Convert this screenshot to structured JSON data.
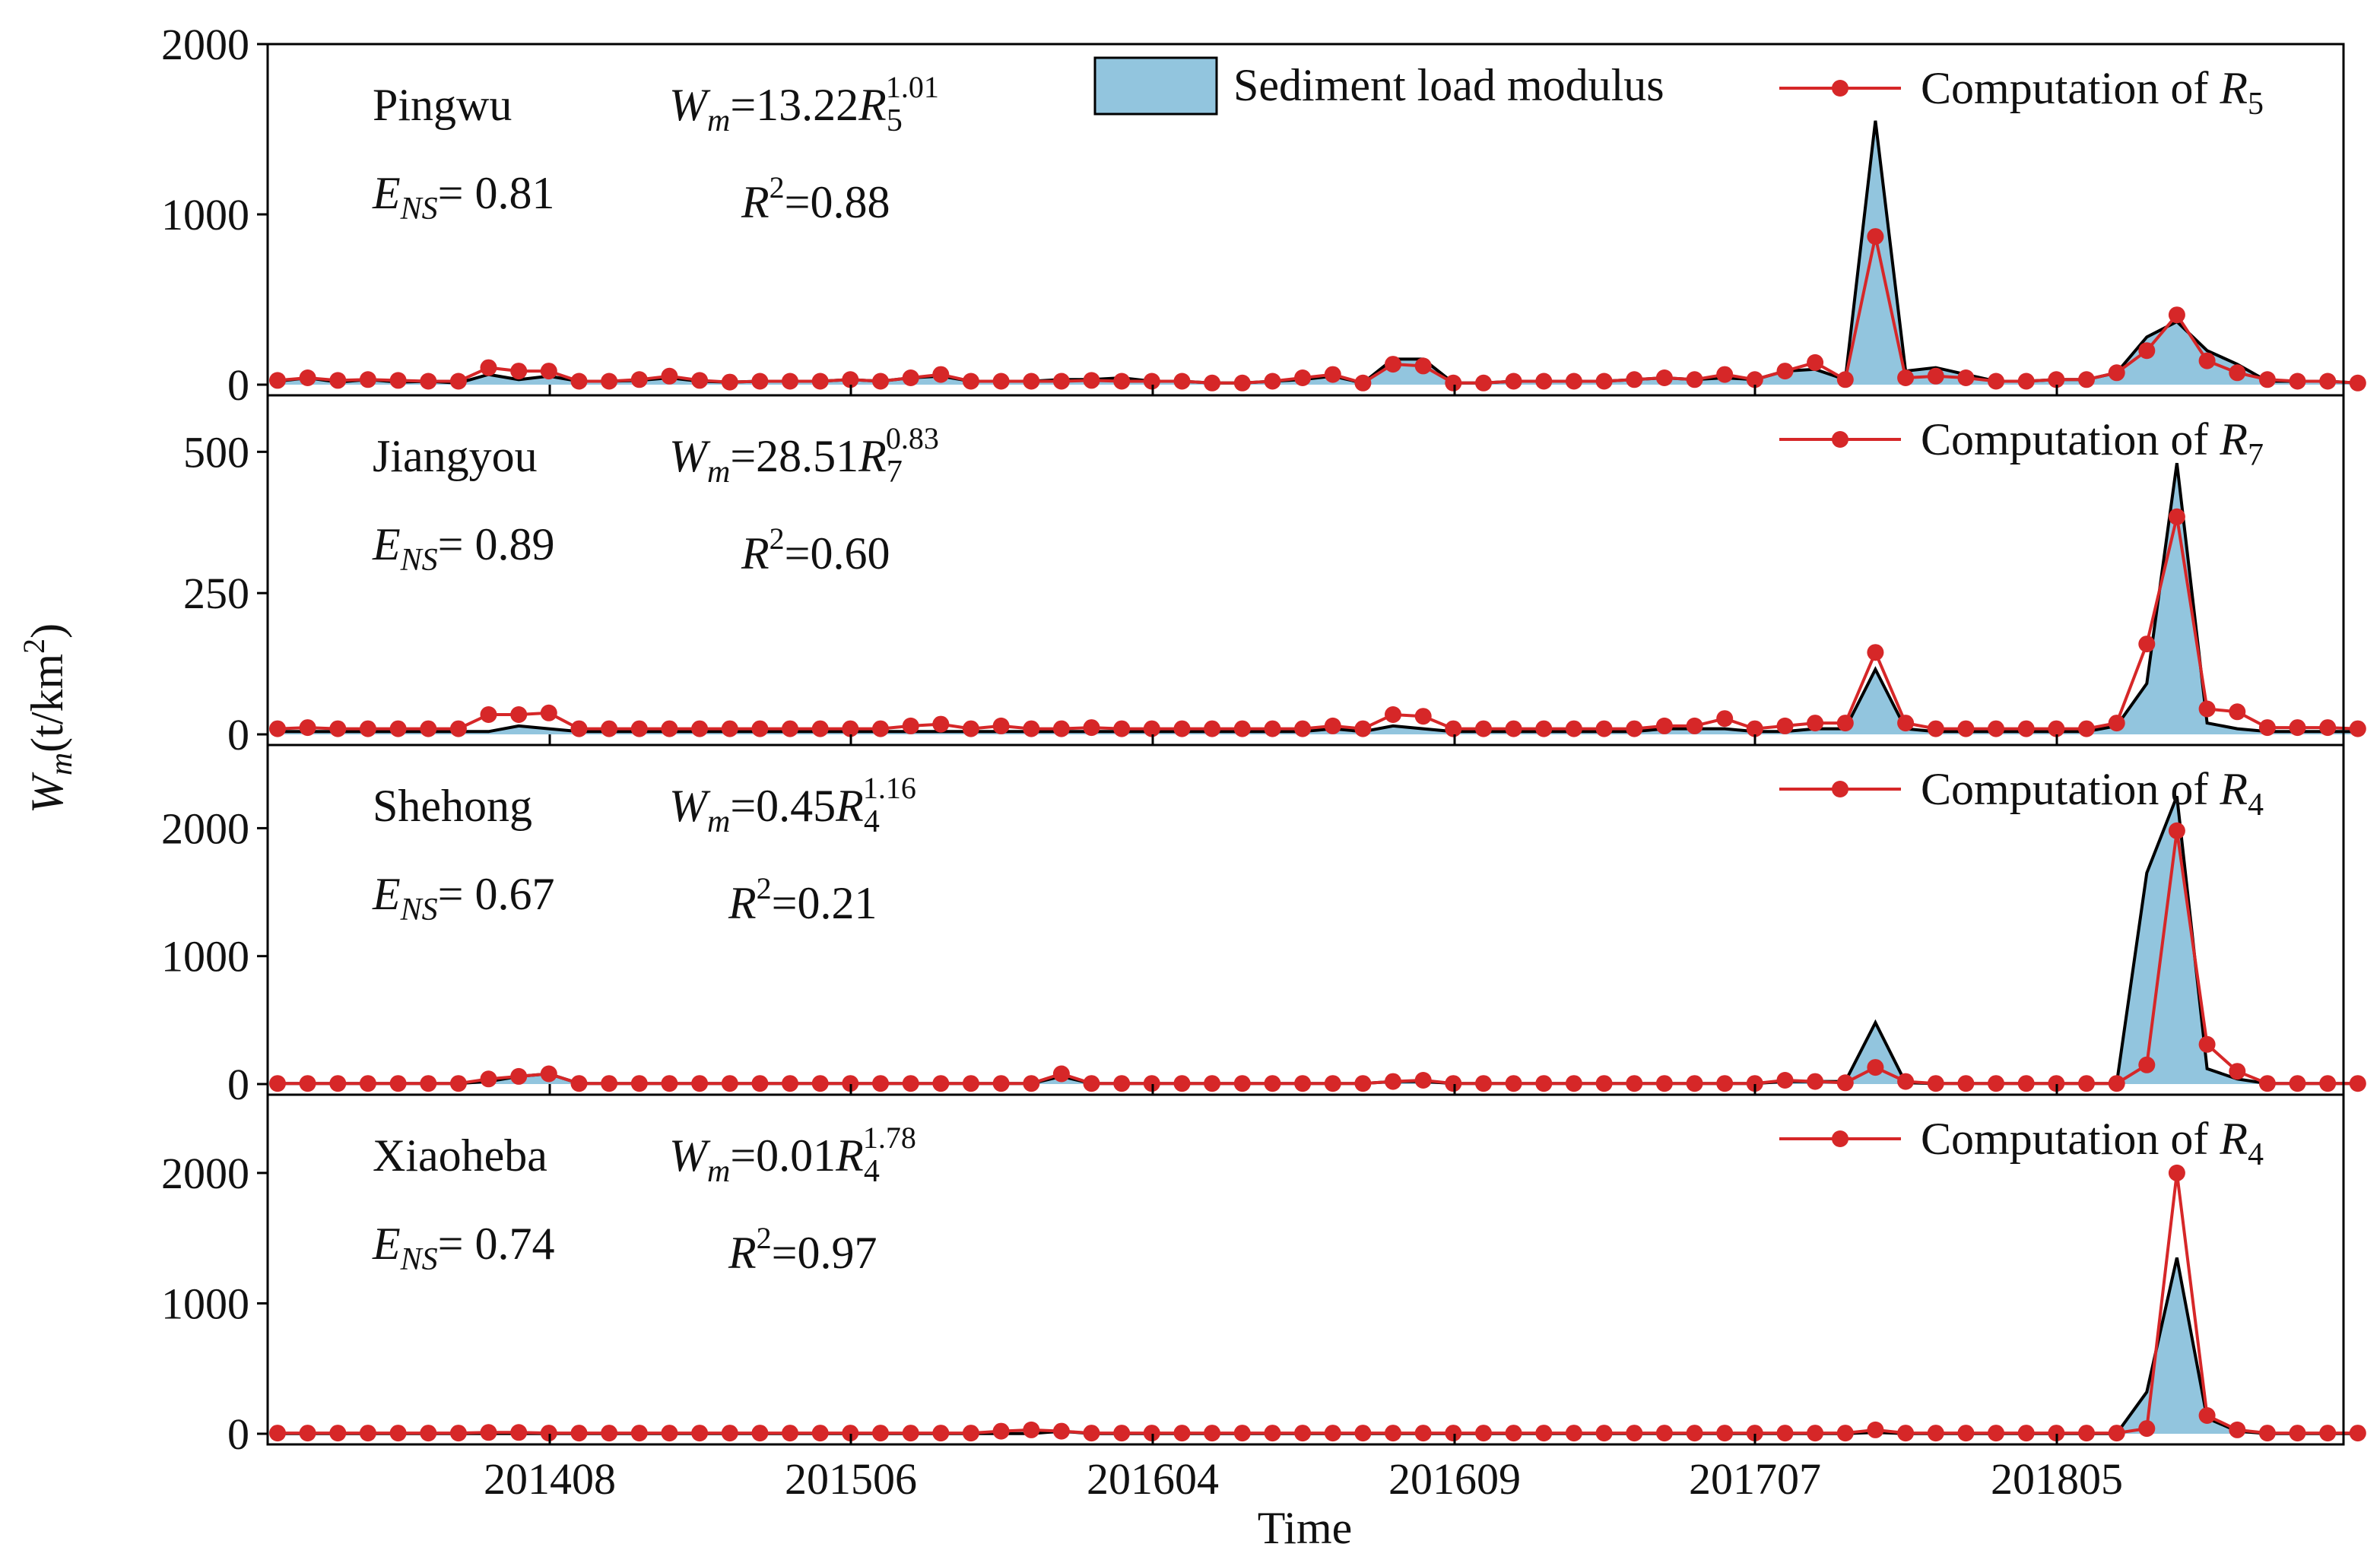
{
  "chart_data": {
    "type": "area",
    "xlabel": "Time",
    "ylabel": "Wm(t/km2)",
    "ylabel_parts": {
      "var": "W",
      "sub": "m",
      "unit": "(t/km",
      "sup": "2",
      "close": ")"
    },
    "x_tick_labels": [
      "201408",
      "201506",
      "201604",
      "201609",
      "201707",
      "201805"
    ],
    "legend": {
      "observed": "Sediment load modulus",
      "computed_prefix": "Computation of",
      "computed_var": "R"
    },
    "panels": [
      {
        "station": "Pingwu",
        "equation": {
          "lhs": "W",
          "lhs_sub": "m",
          "coef": "=13.22",
          "var": "R",
          "var_sub": "5",
          "exp": "1.01"
        },
        "ens": {
          "var": "E",
          "sub": "NS",
          "value": "= 0.81"
        },
        "r2": {
          "var": "R",
          "sup": "2",
          "value": "=0.88"
        },
        "legend_sub": "5",
        "ylim": [
          0,
          2000
        ],
        "yticks": [
          0,
          1000,
          2000
        ],
        "y_tick_labels": [
          "0",
          "1000",
          "2000"
        ],
        "observed": [
          20,
          40,
          15,
          30,
          15,
          20,
          10,
          60,
          30,
          50,
          20,
          20,
          25,
          40,
          20,
          15,
          20,
          20,
          20,
          30,
          20,
          40,
          50,
          20,
          20,
          20,
          30,
          30,
          40,
          20,
          20,
          10,
          10,
          20,
          30,
          50,
          10,
          150,
          150,
          10,
          10,
          20,
          20,
          20,
          20,
          30,
          40,
          30,
          40,
          30,
          80,
          90,
          30,
          1550,
          80,
          100,
          60,
          20,
          20,
          30,
          30,
          70,
          280,
          370,
          200,
          120,
          20,
          20,
          20,
          10
        ],
        "computed": [
          25,
          40,
          25,
          30,
          25,
          20,
          20,
          100,
          80,
          80,
          20,
          20,
          30,
          50,
          25,
          15,
          20,
          20,
          20,
          30,
          20,
          40,
          60,
          20,
          20,
          20,
          20,
          25,
          20,
          20,
          20,
          10,
          10,
          20,
          40,
          60,
          10,
          120,
          110,
          10,
          10,
          20,
          20,
          20,
          20,
          30,
          40,
          30,
          60,
          30,
          80,
          130,
          30,
          870,
          40,
          50,
          40,
          20,
          20,
          30,
          30,
          70,
          200,
          410,
          140,
          70,
          30,
          20,
          20,
          10
        ]
      },
      {
        "station": "Jiangyou",
        "equation": {
          "lhs": "W",
          "lhs_sub": "m",
          "coef": "=28.51",
          "var": "R",
          "var_sub": "7",
          "exp": "0.83"
        },
        "ens": {
          "var": "E",
          "sub": "NS",
          "value": "= 0.89"
        },
        "r2": {
          "var": "R",
          "sup": "2",
          "value": "=0.60"
        },
        "legend_sub": "7",
        "ylim": [
          0,
          600
        ],
        "yticks": [
          0,
          250,
          500
        ],
        "y_tick_labels": [
          "0",
          "250",
          "500"
        ],
        "observed": [
          5,
          5,
          5,
          5,
          5,
          5,
          5,
          5,
          15,
          10,
          5,
          5,
          5,
          5,
          5,
          5,
          5,
          5,
          5,
          5,
          5,
          5,
          5,
          5,
          5,
          5,
          5,
          5,
          5,
          5,
          5,
          5,
          5,
          5,
          5,
          10,
          5,
          15,
          10,
          5,
          5,
          5,
          5,
          5,
          5,
          5,
          10,
          10,
          10,
          5,
          5,
          10,
          10,
          115,
          10,
          5,
          5,
          5,
          5,
          5,
          5,
          15,
          90,
          480,
          20,
          10,
          5,
          5,
          5,
          5
        ],
        "computed": [
          10,
          12,
          10,
          10,
          10,
          10,
          10,
          35,
          35,
          38,
          10,
          10,
          10,
          10,
          10,
          10,
          10,
          10,
          10,
          10,
          10,
          15,
          18,
          10,
          15,
          10,
          10,
          12,
          10,
          10,
          10,
          10,
          10,
          10,
          10,
          15,
          10,
          35,
          32,
          10,
          10,
          10,
          10,
          10,
          10,
          10,
          15,
          15,
          28,
          10,
          15,
          20,
          20,
          145,
          20,
          10,
          10,
          10,
          10,
          10,
          10,
          20,
          160,
          385,
          45,
          40,
          12,
          12,
          12,
          10
        ]
      },
      {
        "station": "Shehong",
        "equation": {
          "lhs": "W",
          "lhs_sub": "m",
          "coef": "=0.45",
          "var": "R",
          "var_sub": "4",
          "exp": "1.16"
        },
        "ens": {
          "var": "E",
          "sub": "NS",
          "value": "= 0.67"
        },
        "r2": {
          "var": "R",
          "sup": "2",
          "value": "=0.21"
        },
        "legend_sub": "4",
        "ylim": [
          0,
          2650
        ],
        "yticks": [
          0,
          1000,
          2000
        ],
        "y_tick_labels": [
          "0",
          "1000",
          "2000"
        ],
        "observed": [
          5,
          5,
          5,
          5,
          5,
          5,
          5,
          20,
          60,
          80,
          5,
          5,
          5,
          5,
          5,
          5,
          5,
          5,
          5,
          5,
          5,
          5,
          5,
          5,
          5,
          5,
          60,
          5,
          5,
          5,
          5,
          5,
          5,
          5,
          5,
          5,
          5,
          20,
          20,
          5,
          5,
          5,
          5,
          5,
          5,
          5,
          5,
          5,
          5,
          5,
          20,
          20,
          20,
          480,
          10,
          5,
          5,
          5,
          5,
          5,
          5,
          5,
          1650,
          2250,
          120,
          40,
          5,
          5,
          5,
          5
        ],
        "computed": [
          5,
          5,
          5,
          5,
          5,
          5,
          5,
          40,
          60,
          80,
          5,
          5,
          5,
          5,
          5,
          5,
          5,
          5,
          5,
          5,
          5,
          5,
          5,
          5,
          5,
          5,
          80,
          5,
          5,
          5,
          5,
          5,
          5,
          5,
          5,
          5,
          5,
          20,
          30,
          5,
          5,
          5,
          5,
          5,
          5,
          5,
          5,
          5,
          5,
          5,
          30,
          20,
          10,
          130,
          20,
          5,
          5,
          5,
          5,
          5,
          5,
          5,
          150,
          1980,
          310,
          100,
          5,
          5,
          5,
          5
        ]
      },
      {
        "station": "Xiaoheba",
        "equation": {
          "lhs": "W",
          "lhs_sub": "m",
          "coef": "=0.01",
          "var": "R",
          "var_sub": "4",
          "exp": "1.78"
        },
        "ens": {
          "var": "E",
          "sub": "NS",
          "value": "= 0.74"
        },
        "r2": {
          "var": "R",
          "sup": "2",
          "value": "=0.97"
        },
        "legend_sub": "4",
        "ylim": [
          0,
          2600
        ],
        "yticks": [
          0,
          1000,
          2000
        ],
        "y_tick_labels": [
          "0",
          "1000",
          "2000"
        ],
        "observed": [
          2,
          2,
          2,
          2,
          2,
          2,
          2,
          2,
          2,
          2,
          2,
          2,
          2,
          2,
          2,
          2,
          2,
          2,
          2,
          2,
          2,
          2,
          2,
          2,
          2,
          2,
          20,
          2,
          2,
          2,
          2,
          2,
          2,
          2,
          2,
          2,
          2,
          2,
          2,
          2,
          2,
          2,
          2,
          2,
          2,
          2,
          2,
          2,
          2,
          2,
          2,
          2,
          2,
          10,
          2,
          2,
          2,
          2,
          2,
          2,
          2,
          2,
          320,
          1350,
          120,
          20,
          2,
          2,
          2,
          2
        ],
        "computed": [
          5,
          5,
          5,
          5,
          5,
          5,
          5,
          10,
          10,
          5,
          5,
          5,
          5,
          5,
          5,
          5,
          5,
          5,
          5,
          5,
          5,
          5,
          5,
          5,
          20,
          30,
          20,
          5,
          5,
          5,
          5,
          5,
          5,
          5,
          5,
          5,
          5,
          5,
          5,
          5,
          5,
          5,
          5,
          5,
          5,
          5,
          5,
          5,
          5,
          5,
          5,
          5,
          5,
          30,
          5,
          5,
          5,
          5,
          5,
          5,
          5,
          5,
          40,
          2000,
          140,
          30,
          5,
          5,
          5,
          5
        ]
      }
    ]
  },
  "colors": {
    "fill": "#92c5de",
    "fill_edge": "#000000",
    "line": "#d62728",
    "marker": "#d62728",
    "axis": "#000000"
  }
}
